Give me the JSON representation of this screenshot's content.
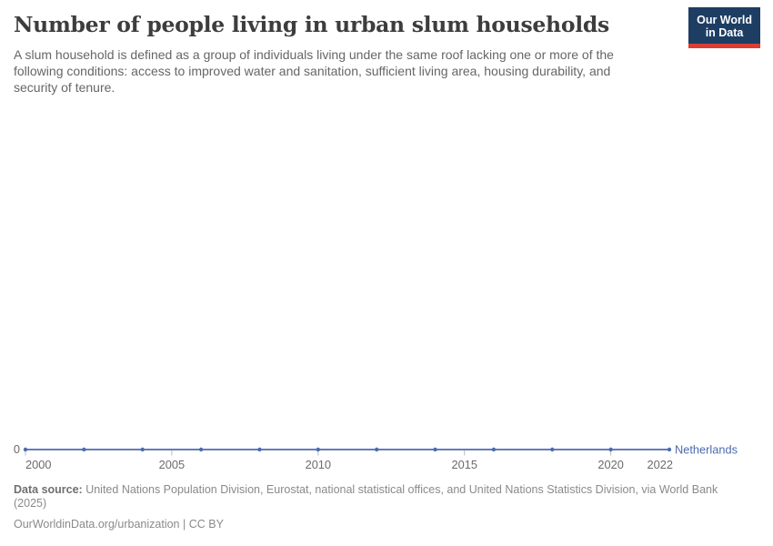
{
  "header": {
    "title": "Number of people living in urban slum households",
    "subtitle": "A slum household is defined as a group of individuals living under the same roof lacking one or more of the following conditions: access to improved water and sanitation, sufficient living area, housing durability, and security of tenure.",
    "logo": {
      "line1": "Our World",
      "line2": "in Data"
    }
  },
  "chart_data": {
    "type": "line",
    "title": "Number of people living in urban slum households",
    "x": [
      2000,
      2002,
      2004,
      2006,
      2008,
      2010,
      2012,
      2014,
      2016,
      2018,
      2020,
      2022
    ],
    "series": [
      {
        "name": "Netherlands",
        "values": [
          0,
          0,
          0,
          0,
          0,
          0,
          0,
          0,
          0,
          0,
          0,
          0
        ]
      }
    ],
    "xlim": [
      2000,
      2022
    ],
    "ylim": [
      0,
      0
    ],
    "x_tick_labels": [
      "2000",
      "2005",
      "2010",
      "2015",
      "2020",
      "2022"
    ],
    "x_ticks": [
      2000,
      2005,
      2010,
      2015,
      2020,
      2022
    ],
    "x_tick_marks": [
      2000,
      2005,
      2010,
      2015,
      2020
    ],
    "y_tick_labels": [
      "0"
    ],
    "grid": false,
    "legend_position": "end-of-line"
  },
  "footer": {
    "datasource_label": "Data source:",
    "datasource_text": " United Nations Population Division, Eurostat, national statistical offices, and United Nations Statistics Division, via World Bank (2025)",
    "url": "OurWorldinData.org/urbanization",
    "separator": " | ",
    "license": "CC BY"
  },
  "colors": {
    "series_line": "#4C6BAF",
    "axis_text": "#6B6B6B",
    "tick_mark": "#BBBBBB",
    "logo_background": "#1D3D63",
    "logo_red_bar": "#DC3D33"
  }
}
